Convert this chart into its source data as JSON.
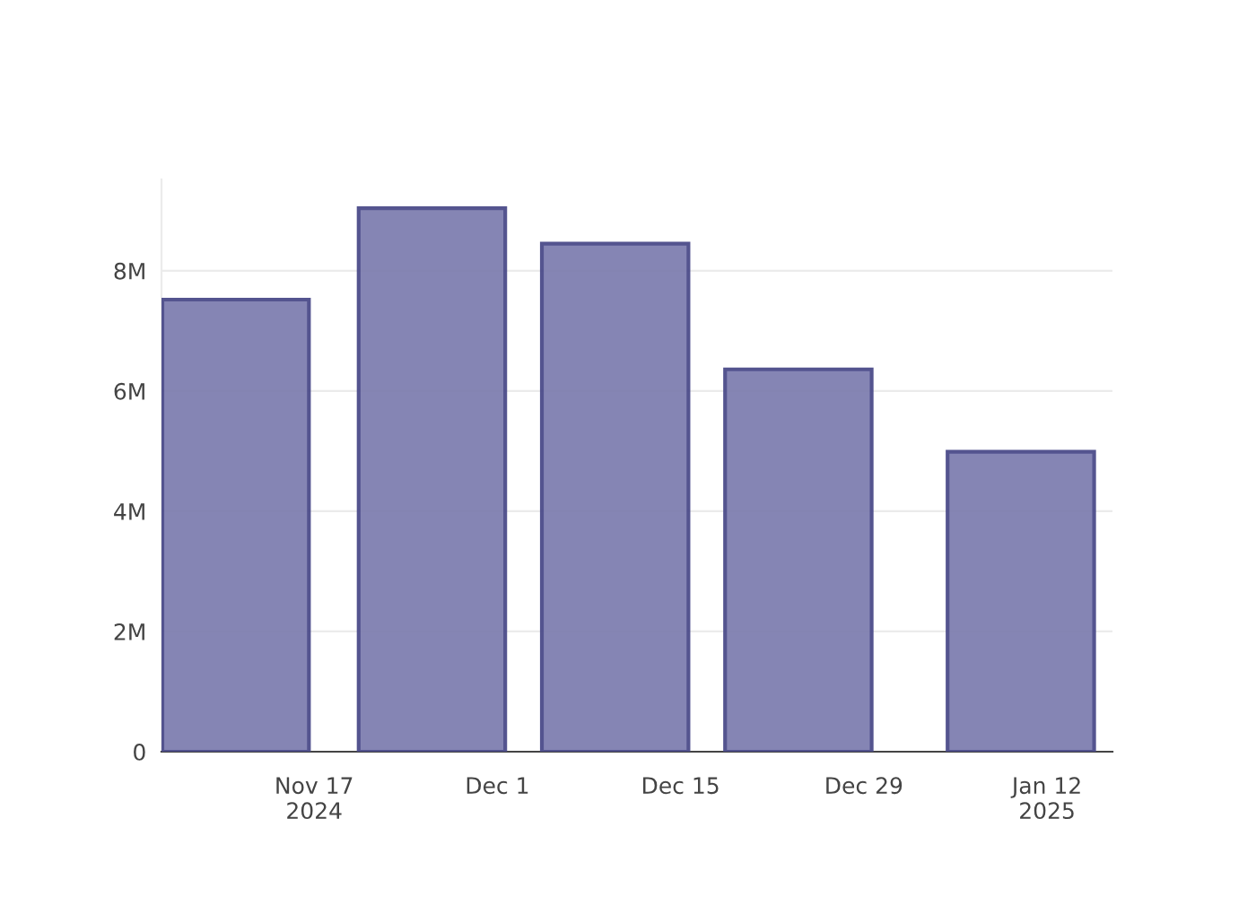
{
  "chart_data": {
    "type": "bar",
    "x": [
      "2024-11-11",
      "2024-11-26",
      "2024-12-10",
      "2024-12-24",
      "2025-01-10"
    ],
    "series": [
      {
        "color": "#7f7fb0",
        "values": [
          7520000,
          9040000,
          8450000,
          6360000,
          4990000
        ]
      }
    ],
    "xlim": [
      "2024-11-05T08:00",
      "2025-01-17"
    ],
    "xticks": [
      {
        "value": "2024-11-17",
        "label": "Nov 17\n2024"
      },
      {
        "value": "2024-12-01",
        "label": "Dec 1"
      },
      {
        "value": "2024-12-15",
        "label": "Dec 15"
      },
      {
        "value": "2024-12-29",
        "label": "Dec 29"
      },
      {
        "value": "2025-01-12",
        "label": "Jan 12\n2025"
      }
    ],
    "yticks": [
      0,
      {
        "value": 2000000,
        "label": "2M"
      },
      {
        "value": 4000000,
        "label": "4M"
      },
      {
        "value": 6000000,
        "label": "6M"
      },
      {
        "value": 8000000,
        "label": "8M"
      }
    ],
    "ylim": [
      0,
      9520000
    ],
    "grid": "y"
  }
}
